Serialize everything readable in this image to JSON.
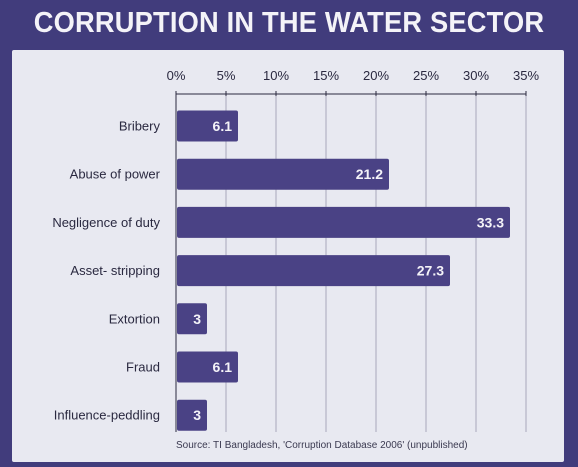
{
  "title": "CORRUPTION IN THE WATER SECTOR",
  "source": "Source: TI Bangladesh, 'Corruption Database 2006' (unpublished)",
  "colors": {
    "frame": "#413c7c",
    "panel": "#e8e9f1",
    "bar": "#4a4285",
    "bar_label": "#f4f3f8",
    "grid": "#a9a8bb",
    "text": "#2a2940"
  },
  "chart_data": {
    "type": "bar",
    "orientation": "horizontal",
    "title": "CORRUPTION IN THE WATER SECTOR",
    "xlabel": "",
    "ylabel": "",
    "xlim": [
      0,
      35
    ],
    "x_ticks": [
      0,
      5,
      10,
      15,
      20,
      25,
      30,
      35
    ],
    "x_tick_labels": [
      "0%",
      "5%",
      "10%",
      "15%",
      "20%",
      "25%",
      "30%",
      "35%"
    ],
    "axis_position": "top",
    "grid": true,
    "categories": [
      "Bribery",
      "Abuse of power",
      "Negligence of duty",
      "Asset- stripping",
      "Extortion",
      "Fraud",
      "Influence-peddling"
    ],
    "values": [
      6.1,
      21.2,
      33.3,
      27.3,
      3,
      6.1,
      3
    ],
    "value_labels": [
      "6.1",
      "21.2",
      "33.3",
      "27.3",
      "3",
      "6.1",
      "3"
    ]
  }
}
